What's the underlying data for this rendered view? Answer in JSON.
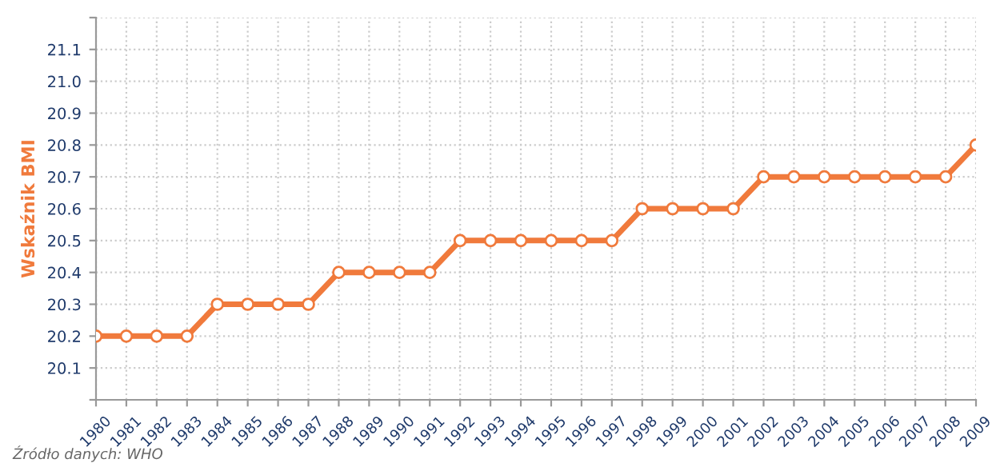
{
  "chart_data": {
    "type": "line",
    "ylabel": "Wskaźnik BMI",
    "categories": [
      "1980",
      "1981",
      "1982",
      "1983",
      "1984",
      "1985",
      "1986",
      "1987",
      "1988",
      "1989",
      "1990",
      "1991",
      "1992",
      "1993",
      "1994",
      "1995",
      "1996",
      "1997",
      "1998",
      "1999",
      "2000",
      "2001",
      "2002",
      "2003",
      "2004",
      "2005",
      "2006",
      "2007",
      "2008",
      "2009"
    ],
    "series": [
      {
        "color": "#f07a3c",
        "values": [
          20.2,
          20.2,
          20.2,
          20.2,
          20.3,
          20.3,
          20.3,
          20.3,
          20.4,
          20.4,
          20.4,
          20.4,
          20.5,
          20.5,
          20.5,
          20.5,
          20.5,
          20.5,
          20.6,
          20.6,
          20.6,
          20.6,
          20.7,
          20.7,
          20.7,
          20.7,
          20.7,
          20.7,
          20.7,
          20.8
        ]
      }
    ],
    "ylim": [
      20.0,
      21.2
    ],
    "yticks": [
      {
        "value": 20.0,
        "label": null
      },
      20.1,
      20.2,
      20.3,
      20.4,
      20.5,
      20.6,
      20.7,
      20.8,
      20.9,
      {
        "value": 21.0,
        "label": "21.0"
      },
      21.1,
      {
        "value": 21.2,
        "label": null
      }
    ],
    "grid": true,
    "marker": "circle",
    "line_style": "solid",
    "annotations": [
      "Źródło danych: WHO"
    ]
  }
}
